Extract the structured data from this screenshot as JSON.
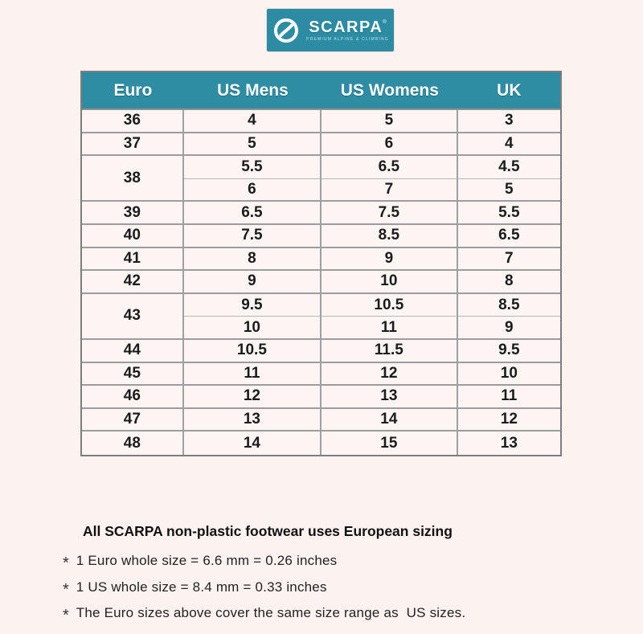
{
  "page": {
    "background_color": "#fcf3f1",
    "accent_teal": "#2b8ca4",
    "border_gray": "#9d9d9d"
  },
  "logo": {
    "brand": "SCARPA",
    "registered_mark": "®",
    "tagline": "PREMIUM ALPINE & CLIMBING"
  },
  "chart_data": {
    "type": "table",
    "columns": [
      "Euro",
      "US Mens",
      "US Womens",
      "UK"
    ],
    "groups": [
      {
        "euro": "36",
        "sizes": [
          [
            "4",
            "5",
            "3"
          ]
        ]
      },
      {
        "euro": "37",
        "sizes": [
          [
            "5",
            "6",
            "4"
          ]
        ]
      },
      {
        "euro": "38",
        "sizes": [
          [
            "5.5",
            "6.5",
            "4.5"
          ],
          [
            "6",
            "7",
            "5"
          ]
        ]
      },
      {
        "euro": "39",
        "sizes": [
          [
            "6.5",
            "7.5",
            "5.5"
          ]
        ]
      },
      {
        "euro": "40",
        "sizes": [
          [
            "7.5",
            "8.5",
            "6.5"
          ]
        ]
      },
      {
        "euro": "41",
        "sizes": [
          [
            "8",
            "9",
            "7"
          ]
        ]
      },
      {
        "euro": "42",
        "sizes": [
          [
            "9",
            "10",
            "8"
          ]
        ]
      },
      {
        "euro": "43",
        "sizes": [
          [
            "9.5",
            "10.5",
            "8.5"
          ],
          [
            "10",
            "11",
            "9"
          ]
        ]
      },
      {
        "euro": "44",
        "sizes": [
          [
            "10.5",
            "11.5",
            "9.5"
          ]
        ]
      },
      {
        "euro": "45",
        "sizes": [
          [
            "11",
            "12",
            "10"
          ]
        ]
      },
      {
        "euro": "46",
        "sizes": [
          [
            "12",
            "13",
            "11"
          ]
        ]
      },
      {
        "euro": "47",
        "sizes": [
          [
            "13",
            "14",
            "12"
          ]
        ]
      },
      {
        "euro": "48",
        "sizes": [
          [
            "14",
            "15",
            "13"
          ]
        ]
      }
    ],
    "legend_position": "none",
    "grid": true
  },
  "notes": {
    "heading": "All SCARPA non-plastic footwear uses European sizing",
    "bullet": "*",
    "items": [
      "1 Euro whole size = 6.6 mm = 0.26 inches",
      "1 US whole size = 8.4 mm = 0.33 inches",
      "The Euro sizes above cover the same size range as  US sizes."
    ]
  }
}
